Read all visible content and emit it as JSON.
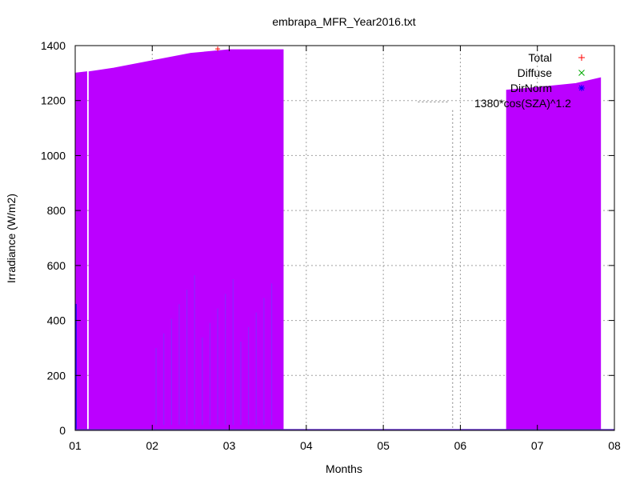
{
  "chart_data": {
    "type": "area",
    "title": "embrapa_MFR_Year2016.txt",
    "xlabel": "Months",
    "ylabel": "Irradiance (W/m2)",
    "xlim": [
      1.0,
      8.0
    ],
    "ylim": [
      0,
      1400
    ],
    "x_ticks": [
      "01",
      "02",
      "03",
      "04",
      "05",
      "06",
      "07",
      "08"
    ],
    "y_ticks": [
      0,
      200,
      400,
      600,
      800,
      1000,
      1200,
      1400
    ],
    "grid": true,
    "legend_position": "top-right",
    "colors": {
      "total": "#ff0000",
      "diffuse": "#00aa00",
      "dirnorm": "#0000ff",
      "area_fill": "#bb00ff",
      "grid": "#a0a0a0",
      "limit_line": "#808080"
    },
    "series": [
      {
        "name": "Total",
        "marker": "+",
        "color": "#ff0000"
      },
      {
        "name": "Diffuse",
        "marker": "x",
        "color": "#00aa00"
      },
      {
        "name": "DirNorm",
        "marker": "*",
        "color": "#0000ff"
      }
    ],
    "envelope_segments": [
      {
        "x": [
          1.0,
          1.15
        ],
        "y": [
          1300,
          1305
        ]
      },
      {
        "x": [
          1.18,
          1.5,
          2.0,
          2.5,
          3.0,
          3.3,
          3.7
        ],
        "y": [
          1305,
          1318,
          1345,
          1372,
          1385,
          1385,
          1385
        ]
      },
      {
        "x": [
          6.6,
          7.0,
          7.5,
          7.82
        ],
        "y": [
          1238,
          1248,
          1262,
          1283
        ]
      }
    ],
    "annotations": [
      {
        "text": "1380*cos(SZA)^1.2"
      }
    ],
    "limit_curve": [
      {
        "x": 5.9,
        "y": 1165
      }
    ]
  }
}
